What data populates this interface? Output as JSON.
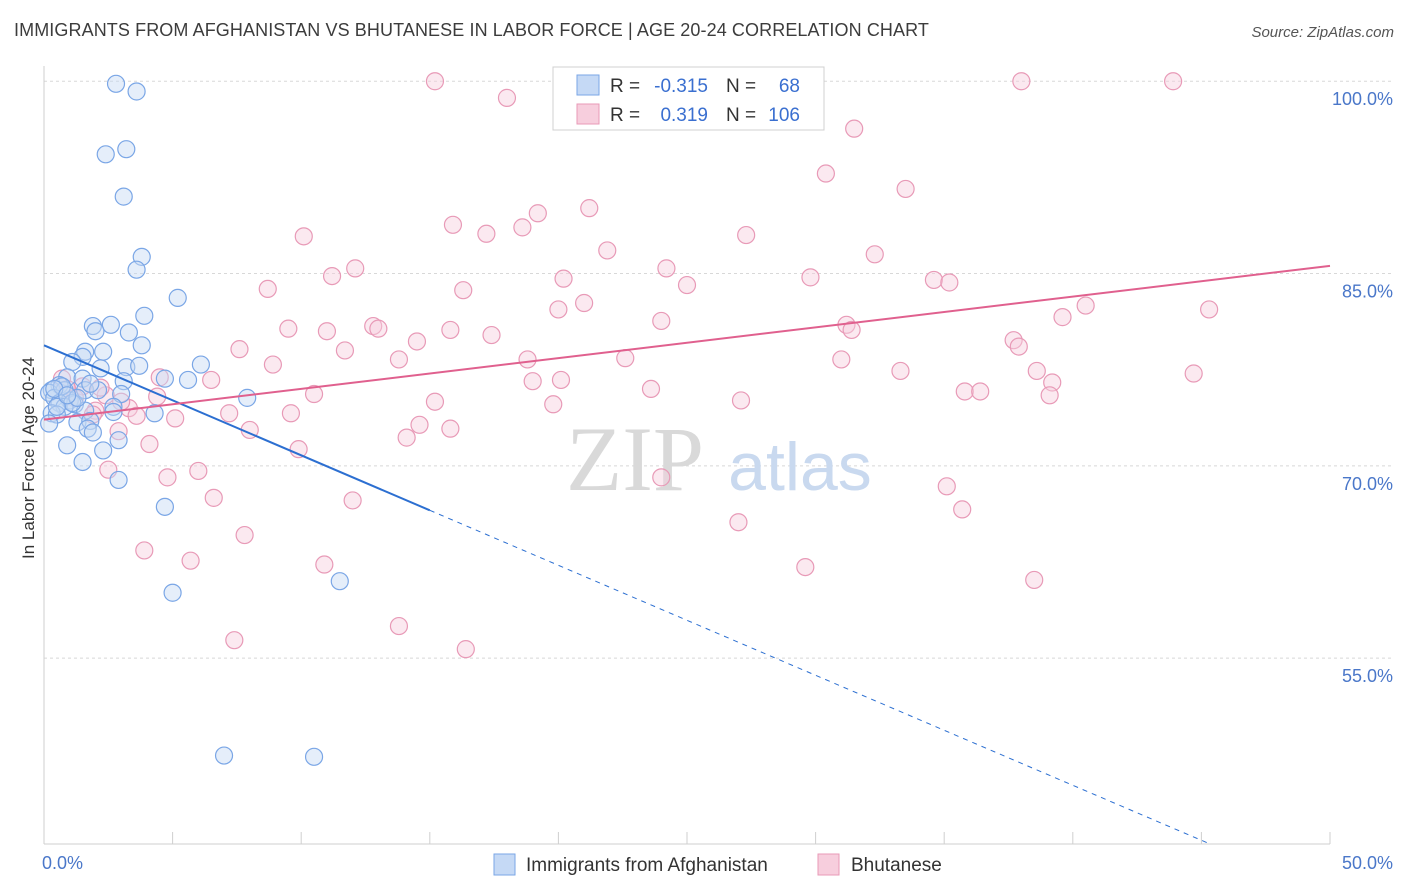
{
  "title": "IMMIGRANTS FROM AFGHANISTAN VS BHUTANESE IN LABOR FORCE | AGE 20-24 CORRELATION CHART",
  "source": "Source: ZipAtlas.com",
  "watermark": {
    "zip": "ZIP",
    "atlas": "atlas"
  },
  "legend": {
    "r_label": "R =",
    "n_label": "N =",
    "rows": [
      {
        "series": "Immigrants from Afghanistan",
        "r": "-0.315",
        "n": "68"
      },
      {
        "series": "Bhutanese",
        "r": "0.319",
        "n": "106"
      }
    ]
  },
  "chart_data": {
    "type": "scatter",
    "title": "IMMIGRANTS FROM AFGHANISTAN VS BHUTANESE IN LABOR FORCE | AGE 20-24 CORRELATION CHART",
    "xlabel": "",
    "ylabel": "In Labor Force | Age 20-24",
    "xlim": [
      0,
      50
    ],
    "ylim": [
      40.5,
      101.5
    ],
    "x_tick_labels": [
      {
        "value": 0,
        "label": "0.0%"
      },
      {
        "value": 50,
        "label": "50.0%"
      }
    ],
    "y_tick_labels": [
      {
        "value": 100,
        "label": "100.0%"
      },
      {
        "value": 85,
        "label": "85.0%"
      },
      {
        "value": 70,
        "label": "70.0%"
      },
      {
        "value": 55,
        "label": "55.0%"
      }
    ],
    "legend_placement": "top-center",
    "series": [
      {
        "name": "Immigrants from Afghanistan",
        "color": "#7aa6e6",
        "fill": "#c5d9f5",
        "line_color": "#2c6fd1",
        "trend": {
          "x0": 0,
          "y0": 79.4,
          "x_solid_end": 15,
          "x1": 50,
          "y1": 36.5
        },
        "points": [
          [
            2.8,
            99.8
          ],
          [
            3.6,
            99.2
          ],
          [
            2.4,
            94.3
          ],
          [
            3.2,
            94.7
          ],
          [
            3.1,
            91.0
          ],
          [
            3.8,
            86.3
          ],
          [
            3.6,
            85.3
          ],
          [
            5.2,
            83.1
          ],
          [
            2.6,
            81.0
          ],
          [
            3.9,
            81.7
          ],
          [
            1.9,
            80.9
          ],
          [
            2.0,
            80.5
          ],
          [
            3.3,
            80.4
          ],
          [
            3.8,
            79.4
          ],
          [
            1.6,
            78.9
          ],
          [
            2.3,
            78.9
          ],
          [
            1.5,
            78.5
          ],
          [
            1.1,
            78.1
          ],
          [
            2.2,
            77.6
          ],
          [
            3.2,
            77.7
          ],
          [
            3.7,
            77.8
          ],
          [
            6.1,
            77.9
          ],
          [
            0.9,
            76.9
          ],
          [
            1.5,
            76.8
          ],
          [
            4.7,
            76.8
          ],
          [
            5.6,
            76.7
          ],
          [
            3.1,
            76.6
          ],
          [
            0.6,
            76.3
          ],
          [
            0.3,
            75.9
          ],
          [
            0.2,
            75.7
          ],
          [
            0.8,
            75.9
          ],
          [
            1.6,
            75.9
          ],
          [
            3.0,
            75.6
          ],
          [
            0.4,
            75.3
          ],
          [
            1.0,
            75.1
          ],
          [
            0.6,
            74.9
          ],
          [
            1.2,
            74.8
          ],
          [
            7.9,
            75.3
          ],
          [
            0.8,
            74.6
          ],
          [
            2.7,
            74.6
          ],
          [
            0.3,
            74.1
          ],
          [
            0.5,
            74.0
          ],
          [
            1.6,
            74.3
          ],
          [
            2.7,
            74.2
          ],
          [
            4.3,
            74.1
          ],
          [
            1.3,
            73.4
          ],
          [
            1.8,
            73.5
          ],
          [
            0.2,
            73.3
          ],
          [
            1.7,
            72.9
          ],
          [
            1.9,
            72.6
          ],
          [
            2.9,
            72.0
          ],
          [
            0.9,
            71.6
          ],
          [
            2.3,
            71.2
          ],
          [
            1.5,
            70.3
          ],
          [
            2.9,
            68.9
          ],
          [
            4.7,
            66.8
          ],
          [
            11.5,
            61.0
          ],
          [
            5.0,
            60.1
          ],
          [
            7.0,
            47.4
          ],
          [
            10.5,
            47.3
          ],
          [
            0.7,
            76.2
          ],
          [
            1.1,
            74.9
          ],
          [
            0.4,
            76.0
          ],
          [
            1.3,
            75.3
          ],
          [
            0.5,
            74.6
          ],
          [
            2.1,
            75.9
          ],
          [
            0.9,
            75.5
          ],
          [
            1.8,
            76.4
          ]
        ]
      },
      {
        "name": "Bhutanese",
        "color": "#e89ab7",
        "fill": "#f7cedd",
        "line_color": "#e0608e",
        "trend": {
          "x0": 0,
          "y0": 73.6,
          "x1": 50,
          "y1": 85.6
        },
        "points": [
          [
            15.2,
            100.0
          ],
          [
            18.0,
            98.7
          ],
          [
            38.0,
            100.0
          ],
          [
            43.9,
            100.0
          ],
          [
            31.5,
            96.3
          ],
          [
            30.4,
            92.8
          ],
          [
            33.5,
            91.6
          ],
          [
            21.2,
            90.1
          ],
          [
            19.2,
            89.7
          ],
          [
            15.9,
            88.8
          ],
          [
            17.2,
            88.1
          ],
          [
            18.6,
            88.6
          ],
          [
            10.1,
            87.9
          ],
          [
            27.3,
            88.0
          ],
          [
            21.9,
            86.8
          ],
          [
            32.3,
            86.5
          ],
          [
            12.1,
            85.4
          ],
          [
            11.2,
            84.8
          ],
          [
            20.2,
            84.6
          ],
          [
            24.2,
            85.4
          ],
          [
            29.8,
            84.7
          ],
          [
            25.0,
            84.1
          ],
          [
            34.6,
            84.5
          ],
          [
            35.2,
            84.3
          ],
          [
            8.7,
            83.8
          ],
          [
            16.3,
            83.7
          ],
          [
            21.0,
            82.7
          ],
          [
            20.0,
            82.2
          ],
          [
            40.5,
            82.5
          ],
          [
            45.3,
            82.2
          ],
          [
            39.6,
            81.6
          ],
          [
            24.0,
            81.3
          ],
          [
            12.8,
            80.9
          ],
          [
            9.5,
            80.7
          ],
          [
            11.0,
            80.5
          ],
          [
            15.8,
            80.6
          ],
          [
            13.0,
            80.7
          ],
          [
            31.2,
            81.0
          ],
          [
            31.4,
            80.6
          ],
          [
            17.4,
            80.2
          ],
          [
            14.5,
            79.7
          ],
          [
            7.6,
            79.1
          ],
          [
            11.7,
            79.0
          ],
          [
            37.7,
            79.8
          ],
          [
            37.9,
            79.3
          ],
          [
            18.8,
            78.3
          ],
          [
            13.8,
            78.3
          ],
          [
            8.9,
            77.9
          ],
          [
            22.6,
            78.4
          ],
          [
            31.0,
            78.3
          ],
          [
            33.3,
            77.4
          ],
          [
            38.6,
            77.4
          ],
          [
            44.7,
            77.2
          ],
          [
            4.5,
            76.9
          ],
          [
            6.5,
            76.7
          ],
          [
            19.0,
            76.6
          ],
          [
            20.1,
            76.7
          ],
          [
            23.6,
            76.0
          ],
          [
            39.2,
            76.5
          ],
          [
            10.5,
            75.6
          ],
          [
            4.4,
            75.4
          ],
          [
            15.2,
            75.0
          ],
          [
            27.1,
            75.1
          ],
          [
            19.8,
            74.8
          ],
          [
            35.8,
            75.8
          ],
          [
            36.4,
            75.8
          ],
          [
            39.1,
            75.5
          ],
          [
            3.3,
            74.5
          ],
          [
            7.2,
            74.1
          ],
          [
            9.6,
            74.1
          ],
          [
            3.6,
            73.9
          ],
          [
            14.6,
            73.2
          ],
          [
            15.8,
            72.9
          ],
          [
            5.1,
            73.7
          ],
          [
            8.0,
            72.8
          ],
          [
            2.9,
            72.7
          ],
          [
            14.1,
            72.2
          ],
          [
            4.1,
            71.7
          ],
          [
            9.9,
            71.3
          ],
          [
            2.5,
            69.7
          ],
          [
            4.8,
            69.1
          ],
          [
            6.0,
            69.6
          ],
          [
            24.0,
            69.1
          ],
          [
            35.1,
            68.4
          ],
          [
            6.6,
            67.5
          ],
          [
            12.0,
            67.3
          ],
          [
            27.0,
            65.6
          ],
          [
            35.7,
            66.6
          ],
          [
            7.8,
            64.6
          ],
          [
            3.9,
            63.4
          ],
          [
            5.7,
            62.6
          ],
          [
            10.9,
            62.3
          ],
          [
            29.6,
            62.1
          ],
          [
            38.5,
            61.1
          ],
          [
            13.8,
            57.5
          ],
          [
            7.4,
            56.4
          ],
          [
            16.4,
            55.7
          ],
          [
            1.5,
            76.2
          ],
          [
            2.4,
            75.5
          ],
          [
            0.9,
            76.0
          ],
          [
            3.0,
            75.0
          ],
          [
            1.2,
            75.3
          ],
          [
            2.0,
            74.3
          ],
          [
            0.7,
            76.8
          ],
          [
            1.9,
            74.0
          ],
          [
            2.2,
            76.1
          ]
        ]
      }
    ]
  }
}
